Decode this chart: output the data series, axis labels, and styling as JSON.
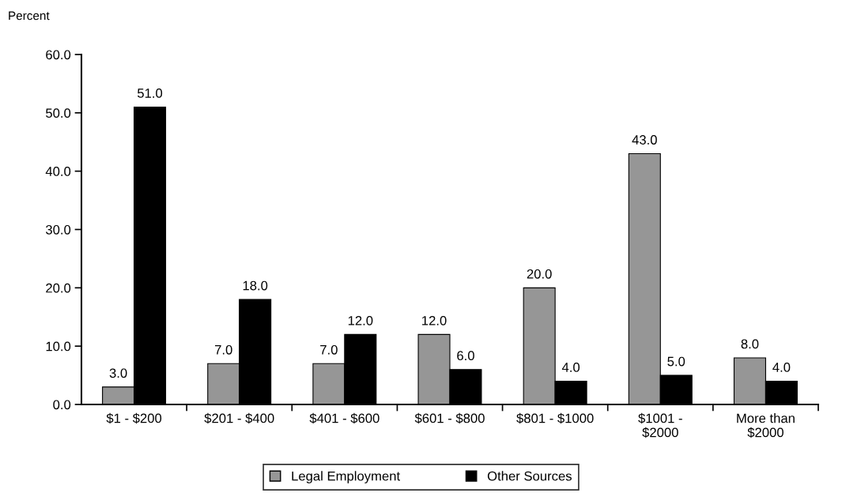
{
  "chart_data": {
    "type": "bar",
    "ylabel": "Percent",
    "categories": [
      "$1 - $200",
      "$201 - $400",
      "$401 - $600",
      "$601 - $800",
      "$801 - $1000",
      "$1001 -\n$2000",
      "More than\n$2000"
    ],
    "series": [
      {
        "name": "Legal Employment",
        "color": "#969696",
        "values": [
          3,
          7,
          7,
          12,
          20,
          43,
          8
        ],
        "value_labels": [
          "3.0",
          "7.0",
          "7.0",
          "12.0",
          "20.0",
          "43.0",
          "8.0"
        ]
      },
      {
        "name": "Other Sources",
        "color": "#000000",
        "values": [
          51,
          18,
          12,
          6,
          4,
          5,
          4
        ],
        "value_labels": [
          "51.0",
          "18.0",
          "12.0",
          "6.0",
          "4.0",
          "5.0",
          "4.0"
        ]
      }
    ],
    "ylim": [
      0,
      60
    ],
    "yticks": [
      {
        "value": 0,
        "label": "0.0"
      },
      {
        "value": 10,
        "label": "10.0"
      },
      {
        "value": 20,
        "label": "20.0"
      },
      {
        "value": 30,
        "label": "30.0"
      },
      {
        "value": 40,
        "label": "40.0"
      },
      {
        "value": 50,
        "label": "50.0"
      },
      {
        "value": 60,
        "label": "60.0"
      }
    ],
    "grid": false,
    "legend": "bottom"
  }
}
